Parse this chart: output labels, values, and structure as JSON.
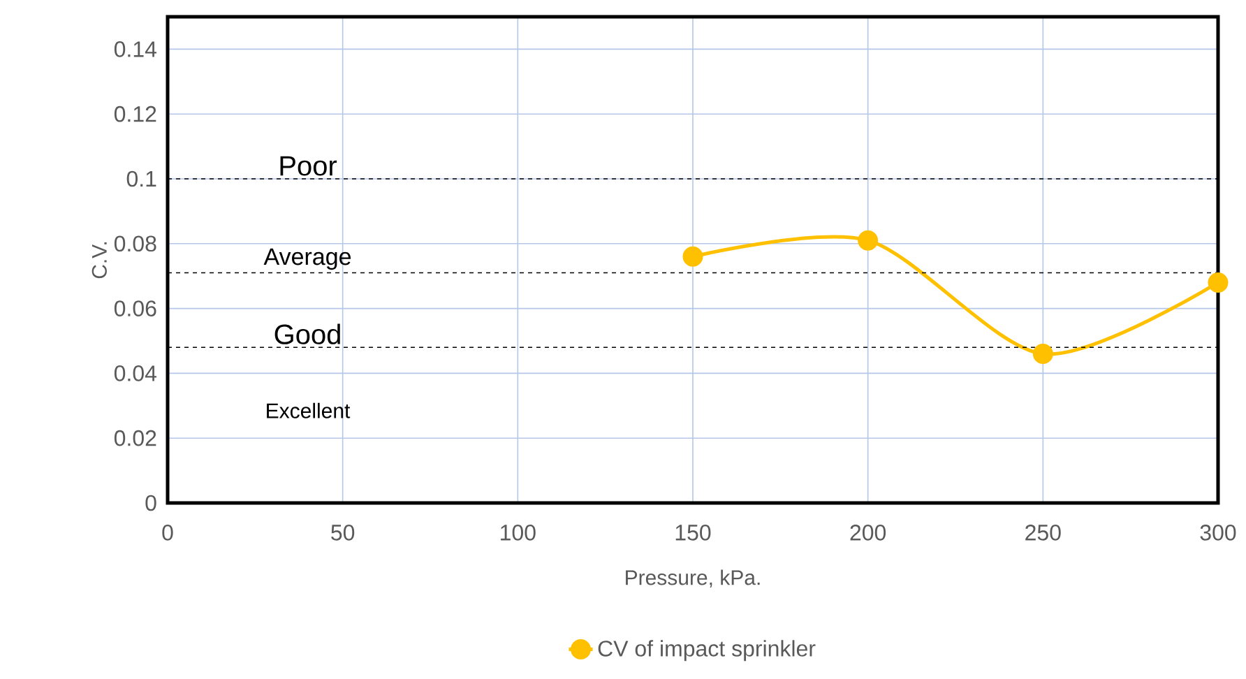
{
  "chart_data": {
    "type": "line",
    "xlabel": "Pressure, kPa.",
    "ylabel": "C.V.",
    "x": [
      150,
      200,
      250,
      300
    ],
    "series": [
      {
        "name": "CV of impact sprinkler",
        "color": "#ffc000",
        "values": [
          0.076,
          0.081,
          0.046,
          0.068
        ]
      }
    ],
    "xlim": [
      0,
      300
    ],
    "xticks": [
      0,
      50,
      100,
      150,
      200,
      250,
      300
    ],
    "ylim": [
      0,
      0.15
    ],
    "yticks": [
      0,
      0.02,
      0.04,
      0.06,
      0.08,
      0.1,
      0.12,
      0.14
    ],
    "ref_lines": [
      {
        "axis": "y",
        "value": 0.1,
        "label": "Poor",
        "color": "#000000",
        "line_style": "dashed"
      },
      {
        "axis": "y",
        "value": 0.071,
        "label": "Average",
        "color": "#000000",
        "line_style": "dashed"
      },
      {
        "axis": "y",
        "value": 0.048,
        "label": "Good",
        "color": "#000000",
        "line_style": "dashed"
      }
    ],
    "annotations": [
      "Excellent"
    ],
    "grid": true,
    "legend": "bottom",
    "marker": "circle",
    "line_style": "solid"
  }
}
